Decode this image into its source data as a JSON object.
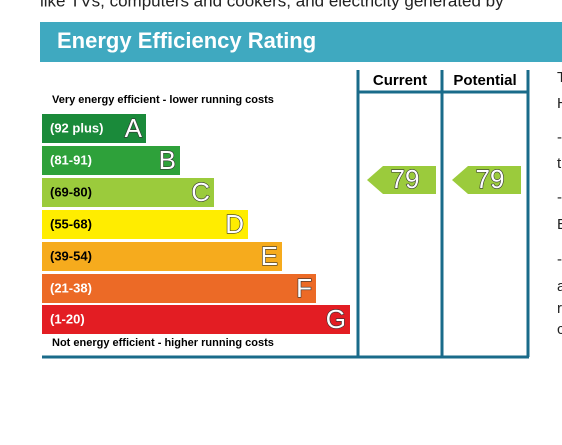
{
  "intro_text": "like TVs, computers and cookers, and electricity generated by",
  "header": {
    "title": "Energy Efficiency Rating"
  },
  "columns": [
    "Current",
    "Potential"
  ],
  "top_note": "Very energy efficient - lower running costs",
  "bottom_note": "Not energy efficient - higher running costs",
  "bands": [
    {
      "range": "(92 plus)",
      "letter": "A",
      "color": "#1a8a3a"
    },
    {
      "range": "(81-91)",
      "letter": "B",
      "color": "#2ea13a"
    },
    {
      "range": "(69-80)",
      "letter": "C",
      "color": "#9bcb3c"
    },
    {
      "range": "(55-68)",
      "letter": "D",
      "color": "#ffed00"
    },
    {
      "range": "(39-54)",
      "letter": "E",
      "color": "#f6ab1d"
    },
    {
      "range": "(21-38)",
      "letter": "F",
      "color": "#ec6a26"
    },
    {
      "range": "(1-20)",
      "letter": "G",
      "color": "#e31d23"
    }
  ],
  "ratings": [
    {
      "column": "Current",
      "value": 79,
      "color": "#9bcb3c"
    },
    {
      "column": "Potential",
      "value": 79,
      "color": "#9bcb3c"
    }
  ],
  "side_text": [
    "T",
    "H",
    "-",
    "t",
    "-",
    "E",
    "-",
    "a",
    "r",
    "c"
  ]
}
